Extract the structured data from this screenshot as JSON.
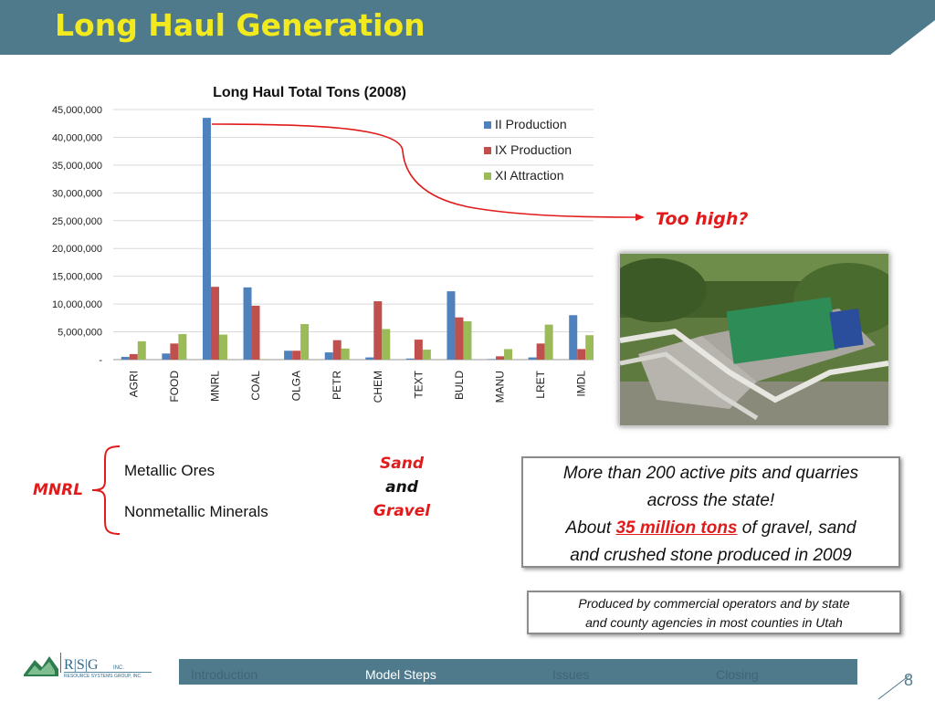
{
  "slide": {
    "title": "Long Haul Generation",
    "page_number": "8",
    "accent_color": "#e11b1b",
    "header_color": "#4f7a8c",
    "title_color": "#f2ea1e"
  },
  "chart_data": {
    "type": "bar",
    "title": "Long Haul Total Tons (2008)",
    "xlabel": "",
    "ylabel": "",
    "ylim": [
      0,
      45000000
    ],
    "yticks": [
      "45,000,000",
      "40,000,000",
      "35,000,000",
      "30,000,000",
      "25,000,000",
      "20,000,000",
      "15,000,000",
      "10,000,000",
      "5,000,000",
      "-"
    ],
    "categories": [
      "AGRI",
      "FOOD",
      "MNRL",
      "COAL",
      "OLGA",
      "PETR",
      "CHEM",
      "TEXT",
      "BULD",
      "MANU",
      "LRET",
      "IMDL"
    ],
    "series": [
      {
        "name": "II Production",
        "color": "#4f81bd",
        "values": [
          500000,
          1100000,
          43500000,
          13000000,
          1600000,
          1300000,
          400000,
          200000,
          12300000,
          100000,
          400000,
          8000000
        ]
      },
      {
        "name": "IX Production",
        "color": "#c0504d",
        "values": [
          1000000,
          2900000,
          13100000,
          9700000,
          1600000,
          3500000,
          10500000,
          3600000,
          7600000,
          600000,
          2900000,
          1900000
        ]
      },
      {
        "name": "XI Attraction",
        "color": "#9bbb59",
        "values": [
          3300000,
          4600000,
          4500000,
          100000,
          6400000,
          2000000,
          5500000,
          1800000,
          6900000,
          1900000,
          6300000,
          4400000
        ]
      }
    ],
    "grid": true,
    "legend": "right"
  },
  "annotation": {
    "too_high": "Too high?"
  },
  "photo": {
    "icon": "collapsed-bridge-truck-photo"
  },
  "mnrl": {
    "label": "MNRL",
    "items": [
      "Metallic Ores",
      "Nonmetallic Minerals"
    ]
  },
  "sand_gravel": {
    "line1": "Sand",
    "line2": "and",
    "line3": "Gravel"
  },
  "pits_box": {
    "line1": "More than 200 active pits and quarries",
    "line2": "across the state!",
    "line3_pre": "About ",
    "line3_highlight": "35 million tons",
    "line3_post": " of gravel, sand",
    "line4": "and crushed stone produced in 2009"
  },
  "produced_box": {
    "line1": "Produced by commercial operators and by state",
    "line2": "and county agencies in most counties in Utah"
  },
  "logo": {
    "letters": "R|S|G",
    "suffix": "INC.",
    "company": "RESOURCE SYSTEMS GROUP, INC."
  },
  "footer_nav": [
    "Introduction",
    "Model Steps",
    "Issues",
    "Closing"
  ]
}
